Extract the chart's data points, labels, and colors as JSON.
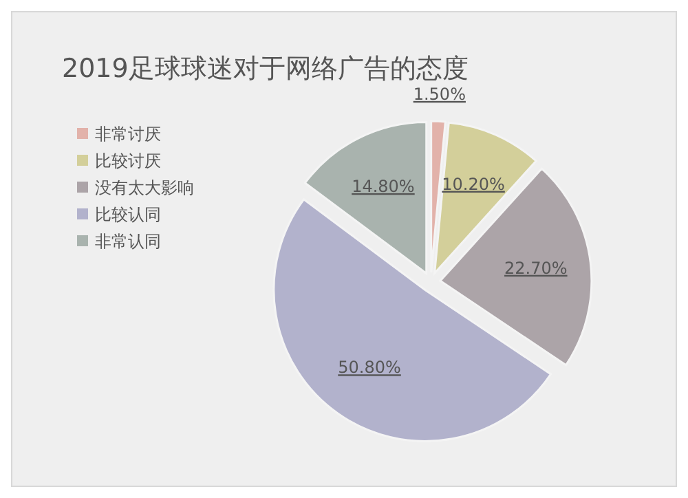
{
  "chart_data": {
    "type": "pie",
    "title": "2019足球球迷对于网络广告的态度",
    "categories": [
      "非常讨厌",
      "比较讨厌",
      "没有太大影响",
      "比较认同",
      "非常认同"
    ],
    "values": [
      1.5,
      10.2,
      22.7,
      50.8,
      14.8
    ],
    "colors": [
      "#e2b2aa",
      "#d3cf9a",
      "#aca4a8",
      "#b2b2cc",
      "#a9b3ae"
    ],
    "value_labels": [
      "1.50%",
      "10.20%",
      "22.70%",
      "50.80%",
      "14.80%"
    ],
    "legend": "left"
  }
}
